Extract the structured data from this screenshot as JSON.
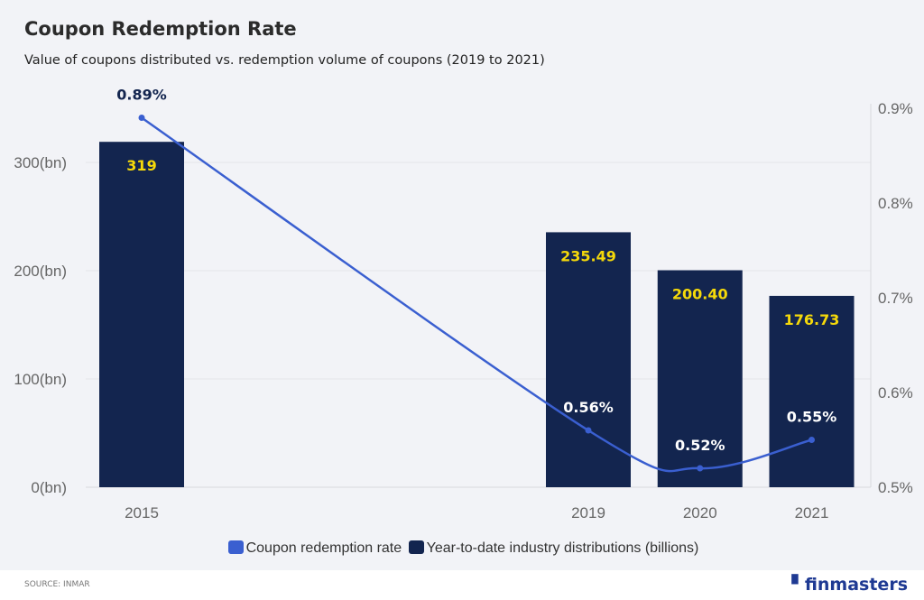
{
  "title": "Coupon Redemption Rate",
  "subtitle": "Value of coupons distributed vs. redemption volume of coupons (2019 to 2021)",
  "chart_data": {
    "type": "bar+line",
    "categories": [
      "2015",
      "2019",
      "2020",
      "2021"
    ],
    "series": [
      {
        "name": "Year-to-date industry distributions (billions)",
        "type": "bar",
        "axis": "left",
        "values": [
          319,
          235.49,
          200.4,
          176.73
        ],
        "labels": [
          "319",
          "235.49",
          "200.40",
          "176.73"
        ],
        "color": "#13254f"
      },
      {
        "name": "Coupon redemption rate",
        "type": "line",
        "axis": "right",
        "values": [
          0.89,
          0.56,
          0.52,
          0.55
        ],
        "labels": [
          "0.89%",
          "0.56%",
          "0.52%",
          "0.55%"
        ],
        "color": "#3a5fd0"
      }
    ],
    "left_axis": {
      "ticks": [
        "0(bn)",
        "100(bn)",
        "200(bn)",
        "300(bn)"
      ],
      "range": [
        0,
        350
      ]
    },
    "right_axis": {
      "ticks": [
        "0.5%",
        "0.6%",
        "0.7%",
        "0.8%",
        "0.9%"
      ],
      "range": [
        0.5,
        0.9
      ]
    },
    "grid": true,
    "legend": "bottom",
    "bar_label_color": "#f5d90a"
  },
  "footer": {
    "source": "SOURCE: INMAR",
    "brand": "finmasters"
  }
}
